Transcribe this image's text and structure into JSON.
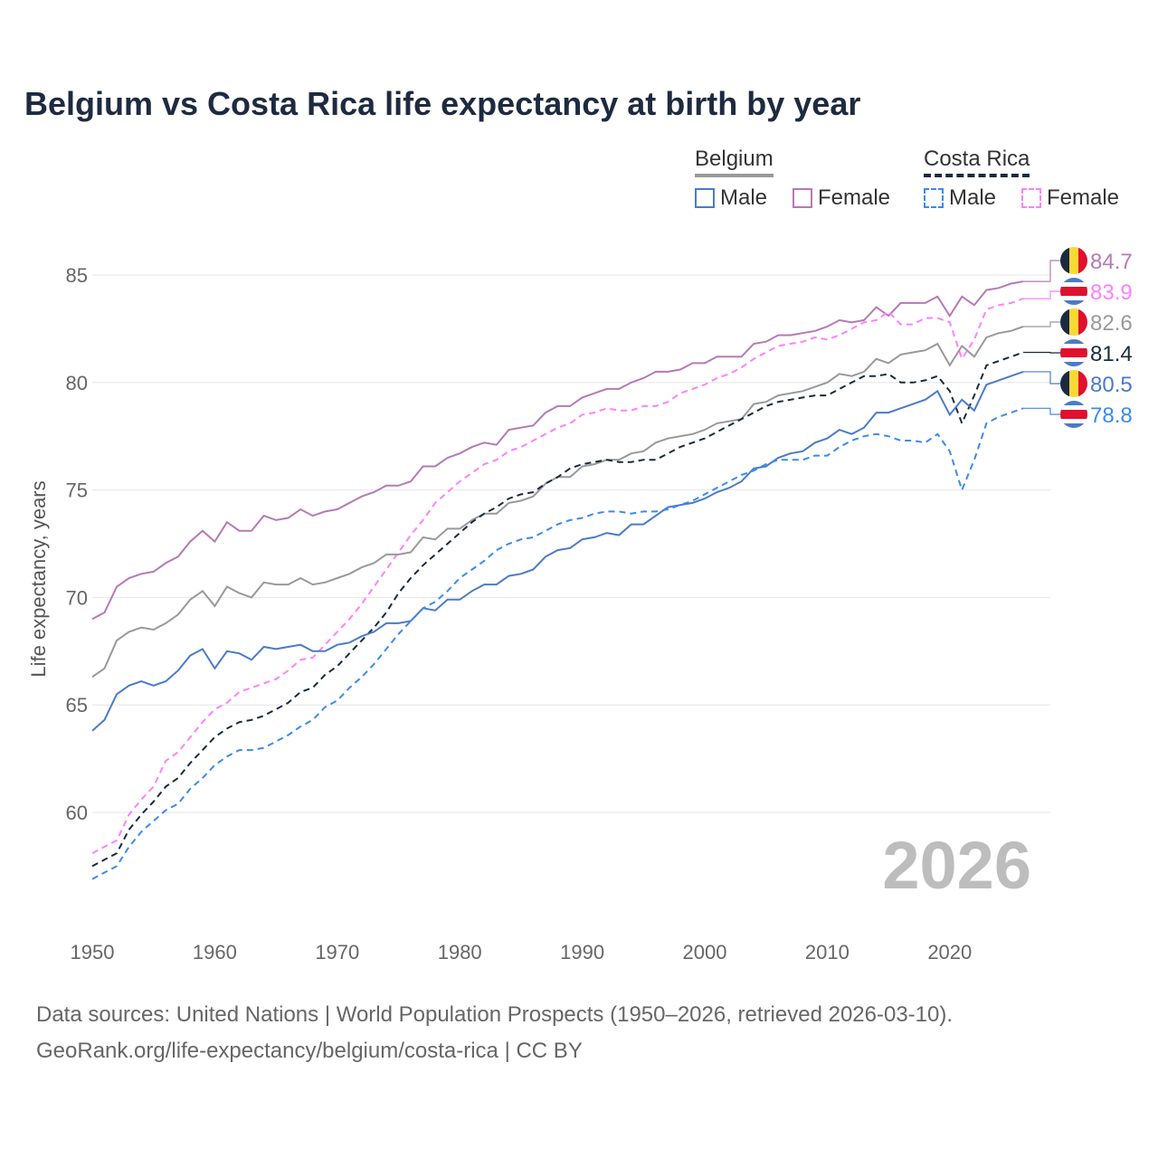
{
  "chart_data": {
    "type": "line",
    "title": "Belgium vs Costa Rica life expectancy at birth by year",
    "xlabel": "",
    "ylabel": "Life expectancy, years",
    "xlim": [
      1950,
      2026
    ],
    "ylim": [
      55.5,
      87
    ],
    "xticks": [
      "1950",
      "1960",
      "1970",
      "1980",
      "1990",
      "2000",
      "2010",
      "2020"
    ],
    "yticks": [
      "60",
      "65",
      "70",
      "75",
      "80",
      "85"
    ],
    "grid": true,
    "year_label": "2026",
    "legend": {
      "placement": "top-right",
      "groups": [
        {
          "name": "Belgium",
          "items": [
            "Male",
            "Female"
          ]
        },
        {
          "name": "Costa Rica",
          "items": [
            "Male",
            "Female"
          ]
        }
      ]
    },
    "x_start": 1950,
    "series": [
      {
        "name": "Belgium Female",
        "color": "#b57ab5",
        "dash": false,
        "flag": "belgium",
        "end_label": "84.7",
        "values": [
          69.0,
          69.3,
          70.5,
          70.9,
          71.1,
          71.2,
          71.6,
          71.9,
          72.6,
          73.1,
          72.6,
          73.5,
          73.1,
          73.1,
          73.8,
          73.6,
          73.7,
          74.1,
          73.8,
          74.0,
          74.1,
          74.4,
          74.7,
          74.9,
          75.2,
          75.2,
          75.4,
          76.1,
          76.1,
          76.5,
          76.7,
          77.0,
          77.2,
          77.1,
          77.8,
          77.9,
          78.0,
          78.6,
          78.9,
          78.9,
          79.3,
          79.5,
          79.7,
          79.7,
          80.0,
          80.2,
          80.5,
          80.5,
          80.6,
          80.9,
          80.9,
          81.2,
          81.2,
          81.2,
          81.8,
          81.9,
          82.2,
          82.2,
          82.3,
          82.4,
          82.6,
          82.9,
          82.8,
          82.9,
          83.5,
          83.1,
          83.7,
          83.7,
          83.7,
          84.0,
          83.1,
          84.0,
          83.6,
          84.3,
          84.4,
          84.6,
          84.7
        ]
      },
      {
        "name": "Costa Rica Female",
        "color": "#ff80ff",
        "dash": true,
        "flag": "costa-rica",
        "end_label": "83.9",
        "values": [
          58.1,
          58.4,
          58.7,
          59.9,
          60.6,
          61.2,
          62.4,
          62.8,
          63.5,
          64.2,
          64.8,
          65.1,
          65.6,
          65.8,
          66.0,
          66.2,
          66.6,
          67.1,
          67.2,
          67.8,
          68.4,
          69.0,
          69.7,
          70.5,
          71.3,
          72.1,
          72.9,
          73.6,
          74.4,
          74.9,
          75.4,
          75.8,
          76.2,
          76.4,
          76.8,
          77.0,
          77.3,
          77.6,
          77.9,
          78.1,
          78.5,
          78.6,
          78.8,
          78.7,
          78.7,
          78.9,
          78.9,
          79.1,
          79.5,
          79.7,
          79.9,
          80.2,
          80.4,
          80.7,
          81.1,
          81.4,
          81.7,
          81.8,
          81.9,
          82.1,
          82.0,
          82.2,
          82.5,
          82.8,
          82.9,
          83.3,
          82.7,
          82.7,
          83.0,
          83.0,
          82.8,
          81.1,
          82.0,
          83.4,
          83.6,
          83.7,
          83.9
        ]
      },
      {
        "name": "Belgium",
        "color": "#999999",
        "dash": false,
        "flag": "belgium",
        "end_label": "82.6",
        "values": [
          66.3,
          66.7,
          68.0,
          68.4,
          68.6,
          68.5,
          68.8,
          69.2,
          69.9,
          70.3,
          69.6,
          70.5,
          70.2,
          70.0,
          70.7,
          70.6,
          70.6,
          70.9,
          70.6,
          70.7,
          70.9,
          71.1,
          71.4,
          71.6,
          72.0,
          72.0,
          72.1,
          72.8,
          72.7,
          73.2,
          73.2,
          73.6,
          73.9,
          73.9,
          74.4,
          74.5,
          74.7,
          75.3,
          75.6,
          75.6,
          76.1,
          76.2,
          76.4,
          76.4,
          76.7,
          76.8,
          77.2,
          77.4,
          77.5,
          77.6,
          77.8,
          78.1,
          78.2,
          78.3,
          79.0,
          79.1,
          79.4,
          79.5,
          79.6,
          79.8,
          80.0,
          80.4,
          80.3,
          80.5,
          81.1,
          80.9,
          81.3,
          81.4,
          81.5,
          81.8,
          80.8,
          81.7,
          81.2,
          82.1,
          82.3,
          82.4,
          82.6
        ]
      },
      {
        "name": "Costa Rica",
        "color": "#1a2a40",
        "dash": true,
        "flag": "costa-rica",
        "end_label": "81.4",
        "values": [
          57.5,
          57.8,
          58.1,
          59.2,
          59.9,
          60.5,
          61.2,
          61.6,
          62.3,
          62.9,
          63.5,
          63.9,
          64.2,
          64.3,
          64.5,
          64.8,
          65.1,
          65.6,
          65.8,
          66.4,
          66.8,
          67.4,
          68.0,
          68.6,
          69.3,
          70.2,
          70.9,
          71.5,
          72.0,
          72.5,
          73.0,
          73.5,
          73.9,
          74.2,
          74.6,
          74.8,
          74.9,
          75.3,
          75.6,
          76.0,
          76.2,
          76.3,
          76.4,
          76.3,
          76.3,
          76.4,
          76.4,
          76.7,
          77.0,
          77.2,
          77.4,
          77.7,
          78.0,
          78.3,
          78.6,
          78.9,
          79.1,
          79.2,
          79.3,
          79.4,
          79.4,
          79.7,
          80.0,
          80.3,
          80.3,
          80.4,
          80.0,
          80.0,
          80.1,
          80.3,
          79.6,
          78.1,
          79.4,
          80.8,
          81.0,
          81.2,
          81.4
        ]
      },
      {
        "name": "Belgium Male",
        "color": "#4a7bc8",
        "dash": false,
        "flag": "belgium",
        "end_label": "80.5",
        "values": [
          63.8,
          64.3,
          65.5,
          65.9,
          66.1,
          65.9,
          66.1,
          66.6,
          67.3,
          67.6,
          66.7,
          67.5,
          67.4,
          67.1,
          67.7,
          67.6,
          67.7,
          67.8,
          67.5,
          67.5,
          67.8,
          67.9,
          68.2,
          68.4,
          68.8,
          68.8,
          68.9,
          69.5,
          69.4,
          69.9,
          69.9,
          70.3,
          70.6,
          70.6,
          71.0,
          71.1,
          71.3,
          71.9,
          72.2,
          72.3,
          72.7,
          72.8,
          73.0,
          72.9,
          73.4,
          73.4,
          73.8,
          74.2,
          74.3,
          74.4,
          74.6,
          74.9,
          75.1,
          75.4,
          76.0,
          76.1,
          76.5,
          76.7,
          76.8,
          77.2,
          77.4,
          77.8,
          77.6,
          77.9,
          78.6,
          78.6,
          78.8,
          79.0,
          79.2,
          79.6,
          78.5,
          79.2,
          78.7,
          79.9,
          80.1,
          80.3,
          80.5
        ]
      },
      {
        "name": "Costa Rica Male",
        "color": "#3b8af0",
        "dash": true,
        "flag": "costa-rica",
        "end_label": "78.8",
        "values": [
          56.9,
          57.2,
          57.5,
          58.4,
          59.1,
          59.6,
          60.1,
          60.4,
          61.1,
          61.6,
          62.2,
          62.6,
          62.9,
          62.9,
          63.0,
          63.3,
          63.6,
          64.0,
          64.3,
          64.9,
          65.2,
          65.8,
          66.3,
          66.9,
          67.6,
          68.3,
          68.9,
          69.5,
          69.8,
          70.3,
          70.9,
          71.3,
          71.7,
          72.2,
          72.5,
          72.7,
          72.8,
          73.1,
          73.4,
          73.6,
          73.7,
          73.9,
          74.0,
          74.0,
          73.9,
          74.0,
          74.0,
          74.1,
          74.3,
          74.5,
          74.8,
          75.1,
          75.4,
          75.7,
          75.9,
          76.2,
          76.4,
          76.4,
          76.4,
          76.6,
          76.6,
          77.0,
          77.3,
          77.5,
          77.6,
          77.5,
          77.3,
          77.3,
          77.2,
          77.6,
          76.8,
          75.0,
          76.4,
          78.1,
          78.4,
          78.6,
          78.8
        ]
      }
    ]
  },
  "legend": {
    "belgium": "Belgium",
    "costa_rica": "Costa Rica",
    "male": "Male",
    "female": "Female"
  },
  "footer": {
    "line1": "Data sources: United Nations | World Population Prospects (1950–2026, retrieved 2026-03-10).",
    "line2": "GeoRank.org/life-expectancy/belgium/costa-rica | CC BY"
  }
}
